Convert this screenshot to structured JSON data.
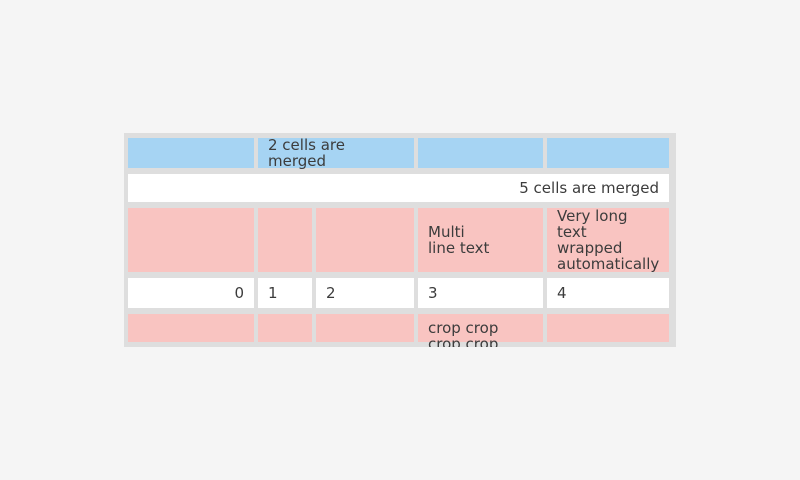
{
  "app": {
    "background_color": "#f5f5f5"
  },
  "table": {
    "colors": {
      "grid_gray": "#dedede",
      "cell_blue": "#a6d4f3",
      "cell_pink": "#f9c4c1",
      "cell_white": "#ffffff",
      "text": "#3c3c3c"
    },
    "rows": [
      {
        "cells": [
          {
            "text": ""
          },
          {
            "text": "2 cells are merged",
            "colspan": 2
          },
          {
            "text": ""
          },
          {
            "text": ""
          }
        ]
      },
      {
        "cells": [
          {
            "text": "5 cells are merged",
            "colspan": 5,
            "align": "right"
          }
        ]
      },
      {
        "cells": [
          {
            "text": ""
          },
          {
            "text": ""
          },
          {
            "text": ""
          },
          {
            "text": "Multi\nline text"
          },
          {
            "text": "Very long text\nwrapped\nautomatically"
          }
        ]
      },
      {
        "cells": [
          {
            "text": "0",
            "align": "right"
          },
          {
            "text": "1"
          },
          {
            "text": "2"
          },
          {
            "text": "3"
          },
          {
            "text": "4"
          }
        ]
      },
      {
        "cells": [
          {
            "text": ""
          },
          {
            "text": ""
          },
          {
            "text": ""
          },
          {
            "text": "crop crop\ncrop crop",
            "cropped": true
          },
          {
            "text": ""
          }
        ]
      }
    ]
  }
}
